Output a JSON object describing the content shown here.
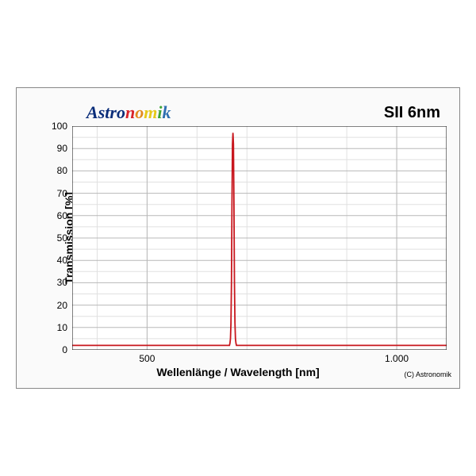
{
  "brand": {
    "text": "Astronomik",
    "letter_colors": [
      "#0b2e7a",
      "#0b2e7a",
      "#0b2e7a",
      "#0b2e7a",
      "#0b2e7a",
      "#d9242a",
      "#e28a1e",
      "#e6c919",
      "#3fa535",
      "#2f6fb0",
      "#2a3fa6"
    ]
  },
  "filter_name": "SII 6nm",
  "ylabel": "Transmission [%]",
  "xlabel": "Wellenlänge / Wavelength [nm]",
  "copyright": "(C) Astronomik",
  "chart": {
    "type": "line",
    "background_color": "#ffffff",
    "grid_major_color": "#b8b8b8",
    "grid_minor_color": "#e0e0e0",
    "axis_color": "#000000",
    "line_color": "#c8171e",
    "line_width": 1.8,
    "xlim": [
      350,
      1100
    ],
    "ylim": [
      0,
      100
    ],
    "xticks_major": [
      500,
      1000
    ],
    "xticks_minor_step": 100,
    "yticks_major": [
      0,
      10,
      20,
      30,
      40,
      50,
      60,
      70,
      80,
      90,
      100
    ],
    "yticks_minor_per_major": 1,
    "xtick_labels": {
      "500": "500",
      "1000": "1.000"
    },
    "data_x": [
      350,
      665,
      666,
      667,
      668,
      669,
      670,
      671,
      672,
      673,
      674,
      675,
      676,
      677,
      678,
      679,
      680,
      1100
    ],
    "data_y": [
      2,
      2,
      3,
      5,
      12,
      30,
      65,
      92,
      97,
      92,
      65,
      30,
      12,
      5,
      3,
      2,
      2,
      2
    ]
  }
}
